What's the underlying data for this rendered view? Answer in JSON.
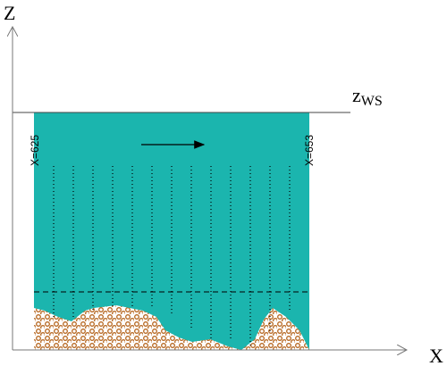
{
  "axes": {
    "z_label": "Z",
    "x_label": "X"
  },
  "water_surface": {
    "label": "z",
    "subscript": "WS"
  },
  "sections": {
    "left": "X=625",
    "right": "X=653"
  }
}
